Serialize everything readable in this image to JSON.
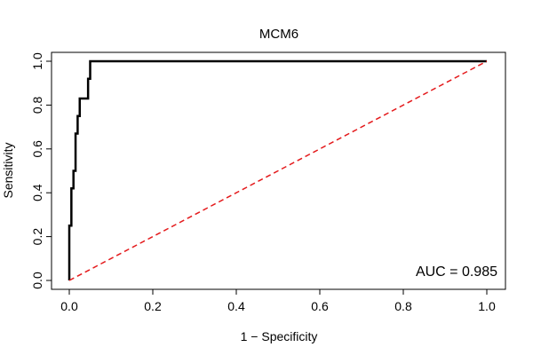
{
  "chart_data": {
    "type": "line",
    "title": "MCM6",
    "xlabel": "1 − Specificity",
    "ylabel": "Sensitivity",
    "xlim": [
      0,
      1
    ],
    "ylim": [
      0,
      1
    ],
    "x_ticks": [
      0,
      0.2,
      0.4,
      0.6,
      0.8,
      1
    ],
    "x_tick_labels": [
      "0.0",
      "0.2",
      "0.4",
      "0.6",
      "0.8",
      "1.0"
    ],
    "y_ticks": [
      0,
      0.2,
      0.4,
      0.6,
      0.8,
      1
    ],
    "y_tick_labels": [
      "0.0",
      "0.2",
      "0.4",
      "0.6",
      "0.8",
      "1.0"
    ],
    "grid": false,
    "annotation": "AUC = 0.985",
    "series": [
      {
        "style": "solid",
        "color": "#000000",
        "x": [
          0,
          0,
          0.005,
          0.005,
          0.01,
          0.01,
          0.015,
          0.015,
          0.02,
          0.02,
          0.025,
          0.025,
          0.045,
          0.045,
          0.05,
          0.05,
          1
        ],
        "y": [
          0,
          0.25,
          0.25,
          0.42,
          0.42,
          0.5,
          0.5,
          0.67,
          0.67,
          0.75,
          0.75,
          0.83,
          0.83,
          0.92,
          0.92,
          1,
          1
        ]
      },
      {
        "style": "dashed",
        "color": "#e41a1c",
        "x": [
          0,
          1
        ],
        "y": [
          0,
          1
        ]
      }
    ]
  }
}
